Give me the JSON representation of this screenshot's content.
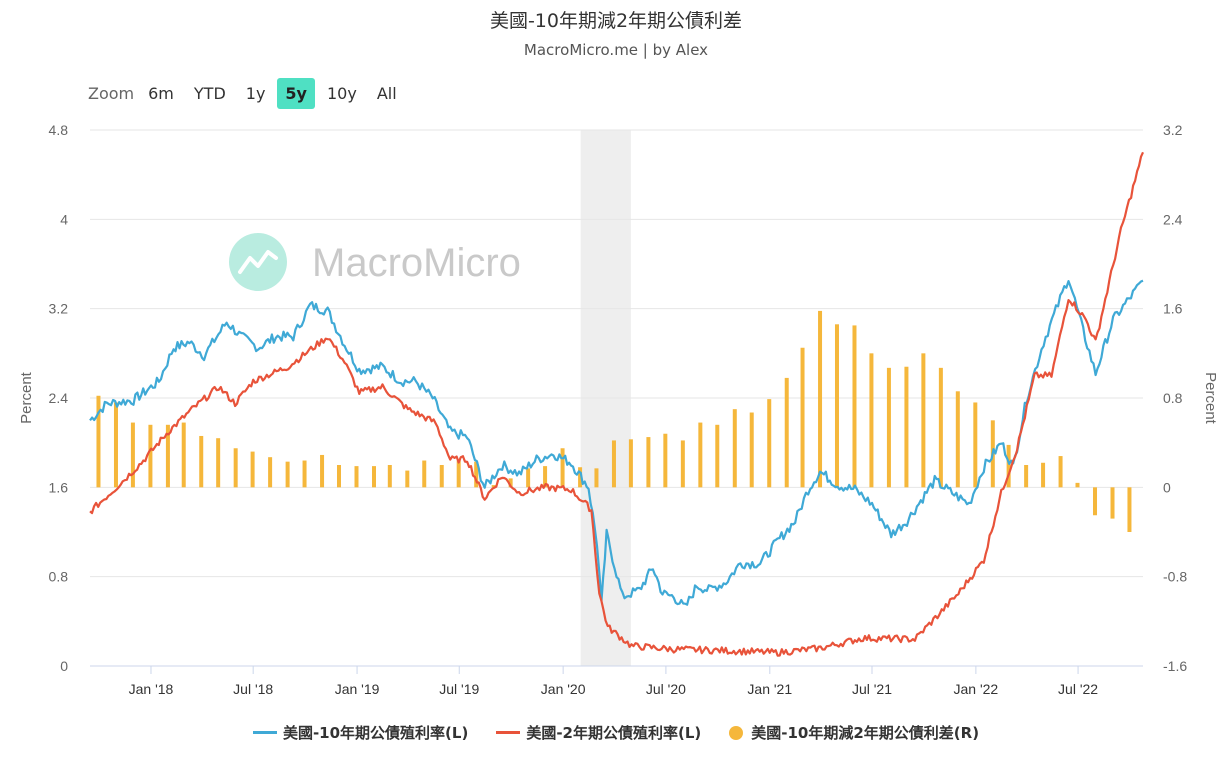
{
  "header": {
    "title": "美國-10年期減2年期公債利差",
    "subtitle": "MacroMicro.me | by Alex"
  },
  "watermark": "MacroMicro",
  "zoom": {
    "label": "Zoom",
    "options": [
      "6m",
      "YTD",
      "1y",
      "5y",
      "10y",
      "All"
    ],
    "selected": "5y"
  },
  "colors": {
    "us10y": "#3fa9d6",
    "us2y": "#e8533a",
    "spread": "#f5b73b",
    "recession": "#eeeeee",
    "watermark": "#b9ece0"
  },
  "chart_data": {
    "type": "line",
    "xlabel": "",
    "left_axis": {
      "label": "Percent",
      "ylim": [
        0,
        4.8
      ],
      "ticks": [
        "0",
        "0.8",
        "1.6",
        "2.4",
        "3.2",
        "4",
        "4.8"
      ]
    },
    "right_axis": {
      "label": "Percent",
      "ylim": [
        -1.6,
        3.2
      ],
      "ticks": [
        "-1.6",
        "-0.8",
        "0",
        "0.8",
        "1.6",
        "2.4",
        "3.2"
      ]
    },
    "x_ticks": [
      "Jan '18",
      "Jul '18",
      "Jan '19",
      "Jul '19",
      "Jan '20",
      "Jul '20",
      "Jan '21",
      "Jul '21",
      "Jan '22",
      "Jul '22"
    ],
    "x_tick_dates": [
      "2018-01-01",
      "2018-07-01",
      "2019-01-01",
      "2019-07-01",
      "2020-01-01",
      "2020-07-01",
      "2021-01-01",
      "2021-07-01",
      "2022-01-01",
      "2022-07-01"
    ],
    "x_range": [
      "2017-09-15",
      "2022-10-24"
    ],
    "recession_band": [
      "2020-02-01",
      "2020-04-30"
    ],
    "legend_position": "bottom",
    "series": [
      {
        "name": "美國-10年期公債殖利率(L)",
        "axis": "left",
        "points": [
          [
            "2017-09-15",
            2.2
          ],
          [
            "2017-10-15",
            2.35
          ],
          [
            "2017-12-01",
            2.38
          ],
          [
            "2018-01-15",
            2.55
          ],
          [
            "2018-02-10",
            2.85
          ],
          [
            "2018-03-10",
            2.9
          ],
          [
            "2018-04-05",
            2.78
          ],
          [
            "2018-05-15",
            3.08
          ],
          [
            "2018-06-10",
            2.95
          ],
          [
            "2018-07-10",
            2.85
          ],
          [
            "2018-08-10",
            2.95
          ],
          [
            "2018-09-10",
            2.95
          ],
          [
            "2018-10-10",
            3.23
          ],
          [
            "2018-11-10",
            3.18
          ],
          [
            "2018-12-10",
            2.88
          ],
          [
            "2019-01-05",
            2.65
          ],
          [
            "2019-02-15",
            2.68
          ],
          [
            "2019-03-20",
            2.55
          ],
          [
            "2019-04-15",
            2.55
          ],
          [
            "2019-05-15",
            2.4
          ],
          [
            "2019-06-15",
            2.1
          ],
          [
            "2019-07-15",
            2.05
          ],
          [
            "2019-08-15",
            1.6
          ],
          [
            "2019-09-15",
            1.8
          ],
          [
            "2019-10-15",
            1.72
          ],
          [
            "2019-11-15",
            1.85
          ],
          [
            "2019-12-15",
            1.9
          ],
          [
            "2020-01-15",
            1.82
          ],
          [
            "2020-02-15",
            1.6
          ],
          [
            "2020-03-01",
            1.1
          ],
          [
            "2020-03-09",
            0.55
          ],
          [
            "2020-03-18",
            1.18
          ],
          [
            "2020-04-15",
            0.62
          ],
          [
            "2020-05-15",
            0.68
          ],
          [
            "2020-06-08",
            0.88
          ],
          [
            "2020-06-25",
            0.65
          ],
          [
            "2020-07-15",
            0.62
          ],
          [
            "2020-08-04",
            0.52
          ],
          [
            "2020-08-25",
            0.72
          ],
          [
            "2020-09-15",
            0.68
          ],
          [
            "2020-10-15",
            0.75
          ],
          [
            "2020-11-10",
            0.92
          ],
          [
            "2020-12-15",
            0.92
          ],
          [
            "2021-01-15",
            1.12
          ],
          [
            "2021-02-15",
            1.3
          ],
          [
            "2021-03-10",
            1.58
          ],
          [
            "2021-03-31",
            1.74
          ],
          [
            "2021-05-01",
            1.62
          ],
          [
            "2021-06-01",
            1.58
          ],
          [
            "2021-07-01",
            1.45
          ],
          [
            "2021-08-04",
            1.18
          ],
          [
            "2021-09-01",
            1.3
          ],
          [
            "2021-10-20",
            1.66
          ],
          [
            "2021-11-20",
            1.55
          ],
          [
            "2021-12-20",
            1.45
          ],
          [
            "2022-01-15",
            1.78
          ],
          [
            "2022-02-15",
            2.0
          ],
          [
            "2022-03-08",
            1.78
          ],
          [
            "2022-04-01",
            2.4
          ],
          [
            "2022-05-01",
            2.9
          ],
          [
            "2022-06-14",
            3.48
          ],
          [
            "2022-07-10",
            3.0
          ],
          [
            "2022-08-01",
            2.62
          ],
          [
            "2022-09-01",
            3.1
          ],
          [
            "2022-10-24",
            3.45
          ]
        ]
      },
      {
        "name": "美國-2年期公債殖利率(L)",
        "axis": "left",
        "points": [
          [
            "2017-09-15",
            1.38
          ],
          [
            "2017-11-01",
            1.6
          ],
          [
            "2017-12-15",
            1.82
          ],
          [
            "2018-02-01",
            2.1
          ],
          [
            "2018-03-15",
            2.3
          ],
          [
            "2018-05-01",
            2.5
          ],
          [
            "2018-05-30",
            2.35
          ],
          [
            "2018-07-01",
            2.55
          ],
          [
            "2018-09-01",
            2.68
          ],
          [
            "2018-10-15",
            2.85
          ],
          [
            "2018-11-10",
            2.95
          ],
          [
            "2018-12-10",
            2.72
          ],
          [
            "2019-01-05",
            2.45
          ],
          [
            "2019-02-15",
            2.5
          ],
          [
            "2019-04-01",
            2.3
          ],
          [
            "2019-05-20",
            2.18
          ],
          [
            "2019-06-15",
            1.85
          ],
          [
            "2019-07-15",
            1.85
          ],
          [
            "2019-08-15",
            1.5
          ],
          [
            "2019-09-15",
            1.7
          ],
          [
            "2019-10-15",
            1.55
          ],
          [
            "2019-12-01",
            1.6
          ],
          [
            "2020-01-15",
            1.58
          ],
          [
            "2020-02-20",
            1.4
          ],
          [
            "2020-03-05",
            0.65
          ],
          [
            "2020-03-20",
            0.35
          ],
          [
            "2020-05-01",
            0.18
          ],
          [
            "2020-07-15",
            0.15
          ],
          [
            "2020-10-01",
            0.14
          ],
          [
            "2021-01-15",
            0.12
          ],
          [
            "2021-04-01",
            0.16
          ],
          [
            "2021-06-15",
            0.25
          ],
          [
            "2021-09-15",
            0.24
          ],
          [
            "2021-10-25",
            0.45
          ],
          [
            "2021-12-01",
            0.65
          ],
          [
            "2022-01-15",
            0.95
          ],
          [
            "2022-02-15",
            1.55
          ],
          [
            "2022-03-15",
            1.95
          ],
          [
            "2022-04-15",
            2.6
          ],
          [
            "2022-05-15",
            2.6
          ],
          [
            "2022-06-14",
            3.3
          ],
          [
            "2022-07-15",
            3.1
          ],
          [
            "2022-08-01",
            2.9
          ],
          [
            "2022-09-15",
            3.9
          ],
          [
            "2022-10-10",
            4.35
          ],
          [
            "2022-10-24",
            4.6
          ]
        ]
      },
      {
        "name": "美國-10年期減2年期公債利差(R)",
        "type": "bar",
        "axis": "right",
        "points": [
          [
            "2017-09-30",
            0.82
          ],
          [
            "2017-10-31",
            0.76
          ],
          [
            "2017-11-30",
            0.58
          ],
          [
            "2017-12-31",
            0.56
          ],
          [
            "2018-01-31",
            0.56
          ],
          [
            "2018-02-28",
            0.58
          ],
          [
            "2018-03-31",
            0.46
          ],
          [
            "2018-04-30",
            0.44
          ],
          [
            "2018-05-31",
            0.35
          ],
          [
            "2018-06-30",
            0.32
          ],
          [
            "2018-07-31",
            0.27
          ],
          [
            "2018-08-31",
            0.23
          ],
          [
            "2018-09-30",
            0.24
          ],
          [
            "2018-10-31",
            0.29
          ],
          [
            "2018-11-30",
            0.2
          ],
          [
            "2018-12-31",
            0.19
          ],
          [
            "2019-01-31",
            0.19
          ],
          [
            "2019-02-28",
            0.2
          ],
          [
            "2019-03-31",
            0.15
          ],
          [
            "2019-04-30",
            0.24
          ],
          [
            "2019-05-31",
            0.2
          ],
          [
            "2019-06-30",
            0.24
          ],
          [
            "2019-07-31",
            0.23
          ],
          [
            "2019-08-31",
            0.02
          ],
          [
            "2019-09-30",
            0.08
          ],
          [
            "2019-10-31",
            0.17
          ],
          [
            "2019-11-30",
            0.19
          ],
          [
            "2019-12-31",
            0.35
          ],
          [
            "2020-01-31",
            0.18
          ],
          [
            "2020-02-29",
            0.17
          ],
          [
            "2020-03-31",
            0.42
          ],
          [
            "2020-04-30",
            0.43
          ],
          [
            "2020-05-31",
            0.45
          ],
          [
            "2020-06-30",
            0.48
          ],
          [
            "2020-07-31",
            0.42
          ],
          [
            "2020-08-31",
            0.58
          ],
          [
            "2020-09-30",
            0.56
          ],
          [
            "2020-10-31",
            0.7
          ],
          [
            "2020-11-30",
            0.67
          ],
          [
            "2020-12-31",
            0.79
          ],
          [
            "2021-01-31",
            0.98
          ],
          [
            "2021-02-28",
            1.25
          ],
          [
            "2021-03-31",
            1.58
          ],
          [
            "2021-04-30",
            1.46
          ],
          [
            "2021-05-31",
            1.45
          ],
          [
            "2021-06-30",
            1.2
          ],
          [
            "2021-07-31",
            1.07
          ],
          [
            "2021-08-31",
            1.08
          ],
          [
            "2021-09-30",
            1.2
          ],
          [
            "2021-10-31",
            1.07
          ],
          [
            "2021-11-30",
            0.86
          ],
          [
            "2021-12-31",
            0.76
          ],
          [
            "2022-01-31",
            0.6
          ],
          [
            "2022-02-28",
            0.38
          ],
          [
            "2022-03-31",
            0.2
          ],
          [
            "2022-04-30",
            0.22
          ],
          [
            "2022-05-31",
            0.28
          ],
          [
            "2022-06-30",
            0.04
          ],
          [
            "2022-07-31",
            -0.25
          ],
          [
            "2022-08-31",
            -0.28
          ],
          [
            "2022-09-30",
            -0.4
          ]
        ]
      }
    ]
  }
}
